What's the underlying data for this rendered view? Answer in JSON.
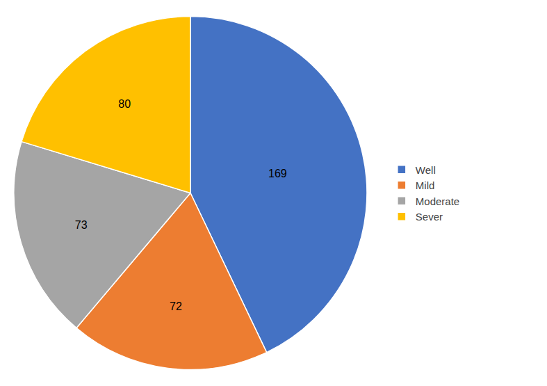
{
  "chart_data": {
    "type": "pie",
    "categories": [
      "Well",
      "Mild",
      "Moderate",
      "Sever"
    ],
    "values": [
      169,
      72,
      73,
      80
    ],
    "colors": [
      "#4472C4",
      "#ED7D31",
      "#A5A5A5",
      "#FFC000"
    ],
    "data_labels": true,
    "legend": "right"
  }
}
